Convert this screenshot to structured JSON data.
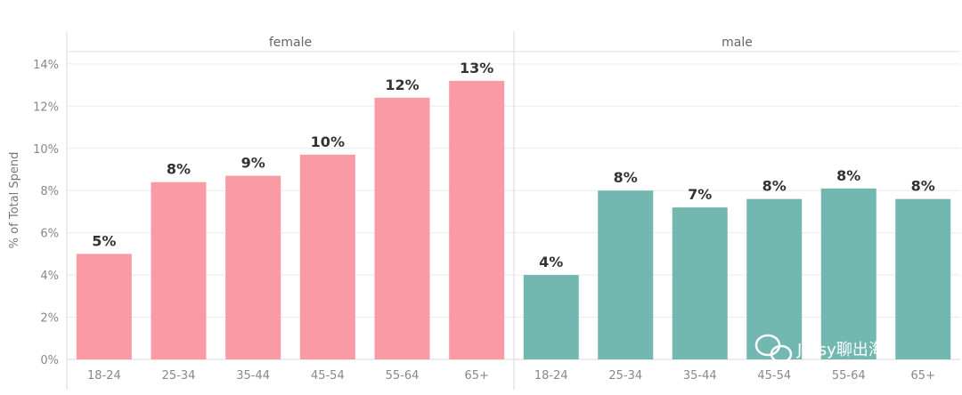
{
  "chart_data": {
    "type": "bar",
    "ylabel": "% of Total Spend",
    "ylim": [
      0,
      14.5
    ],
    "yticks": [
      0,
      2,
      4,
      6,
      8,
      10,
      12,
      14
    ],
    "ytick_labels": [
      "0%",
      "2%",
      "4%",
      "6%",
      "8%",
      "10%",
      "12%",
      "14%"
    ],
    "grid": true,
    "categories": [
      "18-24",
      "25-34",
      "35-44",
      "45-54",
      "55-64",
      "65+"
    ],
    "panels": [
      {
        "name": "female",
        "color": "#f99aa5",
        "values": [
          5.0,
          8.4,
          8.7,
          9.7,
          12.4,
          13.2
        ],
        "labels": [
          "5%",
          "8%",
          "9%",
          "10%",
          "12%",
          "13%"
        ]
      },
      {
        "name": "male",
        "color": "#72b7b0",
        "values": [
          4.0,
          8.0,
          7.2,
          7.6,
          8.1,
          7.6
        ],
        "labels": [
          "4%",
          "8%",
          "7%",
          "8%",
          "8%",
          "8%"
        ]
      }
    ]
  },
  "watermark": {
    "text": "Jersy聊出海",
    "icon": "wechat-icon"
  }
}
